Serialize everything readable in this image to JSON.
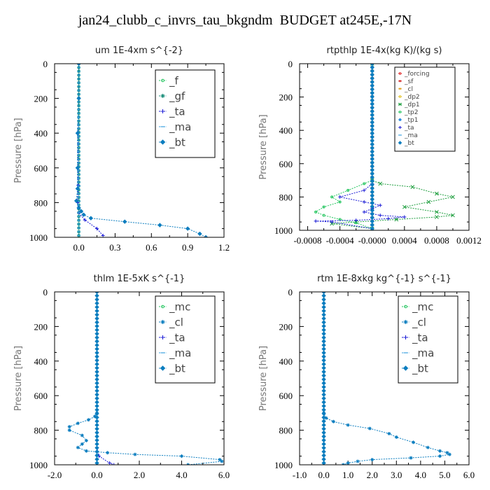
{
  "title": "jan24_clubb_c_invrs_tau_bkgndm  BUDGET at245E,-17N",
  "chart_data": [
    {
      "type": "line",
      "title": "um   1E-4xm s^{-2}",
      "ylabel": "Pressure [hPa]",
      "xlim": [
        -0.2,
        1.2
      ],
      "ylim": [
        1000,
        0
      ],
      "xticks": [
        0.0,
        0.3,
        0.6,
        0.9,
        1.2
      ],
      "xticklabels": [
        "0.0",
        "0.3",
        "0.6",
        "0.9",
        "1.2"
      ],
      "yticks": [
        0,
        200,
        400,
        600,
        800,
        1000
      ],
      "legend_position": "top-right",
      "legend_font": 15,
      "series": [
        {
          "name": "_f",
          "color": "#22c55e",
          "marker": "circle",
          "points": [
            [
              0.0,
              0
            ],
            [
              0.0,
              1000
            ]
          ]
        },
        {
          "name": "_gf",
          "color": "#1b8e7a",
          "marker": "star",
          "points": [
            [
              0.0,
              0
            ],
            [
              0.0,
              1000
            ]
          ]
        },
        {
          "name": "_ta",
          "color": "#1a1ad6",
          "marker": "plus",
          "points": [
            [
              0.0,
              0
            ],
            [
              -0.005,
              700
            ],
            [
              -0.01,
              800
            ],
            [
              0.0,
              860
            ],
            [
              0.05,
              900
            ],
            [
              0.15,
              950
            ],
            [
              0.2,
              990
            ]
          ]
        },
        {
          "name": "_ma",
          "color": "#3aa0e0",
          "marker": "dash",
          "points": [
            [
              0.0,
              0
            ],
            [
              0.0,
              1000
            ]
          ]
        },
        {
          "name": "_bt",
          "color": "#0b7dbf",
          "marker": "diamond",
          "points": [
            [
              0.0,
              0
            ],
            [
              0.0,
              200
            ],
            [
              -0.01,
              400
            ],
            [
              -0.01,
              600
            ],
            [
              -0.01,
              720
            ],
            [
              -0.02,
              790
            ],
            [
              0.0,
              830
            ],
            [
              0.02,
              850
            ],
            [
              0.04,
              870
            ],
            [
              0.1,
              890
            ],
            [
              0.38,
              910
            ],
            [
              0.67,
              930
            ],
            [
              0.9,
              950
            ],
            [
              1.0,
              980
            ],
            [
              1.05,
              1000
            ]
          ]
        }
      ]
    },
    {
      "type": "line",
      "title": "rtpthlp   1E-4x(kg K)/(kg s)",
      "ylabel": "Pressure [hPa]",
      "xlim": [
        -0.0009,
        0.0012
      ],
      "ylim": [
        1000,
        0
      ],
      "xticks": [
        -0.0008,
        -0.0004,
        0.0,
        0.0004,
        0.0008,
        0.0012
      ],
      "xticklabels": [
        "-0.0008",
        "-0.0004",
        "-0.0000",
        "0.0004",
        "0.0008",
        "0.0012"
      ],
      "yticks": [
        0,
        200,
        400,
        600,
        800,
        1000
      ],
      "legend_position": "top-right",
      "legend_font": 9,
      "series": [
        {
          "name": "_forcing",
          "color": "#e02020",
          "marker": "circle",
          "points": [
            [
              0.0,
              0
            ],
            [
              0.0,
              1000
            ]
          ]
        },
        {
          "name": "_sf",
          "color": "#d02020",
          "marker": "tri",
          "points": [
            [
              0.0,
              0
            ],
            [
              0.0,
              1000
            ]
          ]
        },
        {
          "name": "_cl",
          "color": "#e0a020",
          "marker": "tri",
          "points": [
            [
              0.0,
              0
            ],
            [
              0.0,
              1000
            ]
          ]
        },
        {
          "name": "_dp2",
          "color": "#e0c020",
          "marker": "circle",
          "points": [
            [
              0.0,
              0
            ],
            [
              0.0,
              1000
            ]
          ]
        },
        {
          "name": "_dp1",
          "color": "#1e9e3e",
          "marker": "cross",
          "points": [
            [
              0.0,
              0
            ],
            [
              0.0,
              700
            ],
            [
              0.0001,
              720
            ],
            [
              0.0005,
              740
            ],
            [
              0.0008,
              780
            ],
            [
              0.001,
              800
            ],
            [
              0.0007,
              830
            ],
            [
              0.0004,
              860
            ],
            [
              0.0008,
              890
            ],
            [
              0.001,
              910
            ],
            [
              0.0008,
              920
            ],
            [
              0.0003,
              935
            ],
            [
              -0.0002,
              950
            ],
            [
              -0.0005,
              960
            ],
            [
              0.0,
              990
            ],
            [
              0.0,
              1000
            ]
          ]
        },
        {
          "name": "_tp2",
          "color": "#22c55e",
          "marker": "circle",
          "points": [
            [
              0.0,
              0
            ],
            [
              0.0,
              700
            ],
            [
              -0.0001,
              720
            ],
            [
              -0.0003,
              760
            ],
            [
              -0.0005,
              800
            ],
            [
              -0.0004,
              830
            ],
            [
              -0.0006,
              860
            ],
            [
              -0.0007,
              890
            ],
            [
              -0.0006,
              910
            ],
            [
              -0.0004,
              935
            ],
            [
              -0.0002,
              955
            ],
            [
              0.0,
              990
            ],
            [
              0.0,
              1000
            ]
          ]
        },
        {
          "name": "_tp1",
          "color": "#2a8ae0",
          "marker": "star",
          "points": [
            [
              0.0,
              0
            ],
            [
              0.0,
              1000
            ]
          ]
        },
        {
          "name": "_ta",
          "color": "#1a1ad6",
          "marker": "plus",
          "points": [
            [
              0.0,
              0
            ],
            [
              0.0,
              720
            ],
            [
              -0.0001,
              760
            ],
            [
              -0.0004,
              800
            ],
            [
              -0.0001,
              830
            ],
            [
              0.0001,
              850
            ],
            [
              0.0,
              870
            ],
            [
              -0.0001,
              890
            ],
            [
              0.0001,
              910
            ],
            [
              0.0004,
              920
            ],
            [
              0.0002,
              930
            ],
            [
              -0.0002,
              940
            ],
            [
              -0.0007,
              945
            ],
            [
              -0.0005,
              950
            ],
            [
              0.0,
              990
            ],
            [
              0.0,
              1000
            ]
          ]
        },
        {
          "name": "_ma",
          "color": "#3aa0e0",
          "marker": "dash",
          "points": [
            [
              0.0,
              0
            ],
            [
              0.0,
              1000
            ]
          ]
        },
        {
          "name": "_bt",
          "color": "#0b7dbf",
          "marker": "diamond",
          "points": [
            [
              0.0,
              0
            ],
            [
              0.0,
              1000
            ]
          ]
        }
      ]
    },
    {
      "type": "line",
      "title": "thlm   1E-5xK s^{-1}",
      "ylabel": "Pressure [hPa]",
      "xlim": [
        -2.0,
        6.0
      ],
      "ylim": [
        1000,
        0
      ],
      "xticks": [
        -2.0,
        0.0,
        2.0,
        4.0,
        6.0
      ],
      "xticklabels": [
        "-2.0",
        "0.0",
        "2.0",
        "4.0",
        "6.0"
      ],
      "yticks": [
        0,
        200,
        400,
        600,
        800,
        1000
      ],
      "legend_position": "top-right",
      "legend_font": 15,
      "series": [
        {
          "name": "_mc",
          "color": "#22c55e",
          "marker": "circle",
          "points": [
            [
              0.0,
              0
            ],
            [
              0.0,
              1000
            ]
          ]
        },
        {
          "name": "_cl",
          "color": "#0b7dbf",
          "marker": "star",
          "points": [
            [
              0.0,
              0
            ],
            [
              0.0,
              700
            ],
            [
              -0.1,
              720
            ],
            [
              -0.4,
              740
            ],
            [
              -0.9,
              760
            ],
            [
              -1.3,
              780
            ],
            [
              -1.3,
              800
            ],
            [
              -0.7,
              830
            ],
            [
              -0.5,
              860
            ],
            [
              -0.7,
              880
            ],
            [
              -0.9,
              900
            ],
            [
              -0.5,
              920
            ],
            [
              0.5,
              930
            ],
            [
              1.8,
              940
            ],
            [
              4.0,
              950
            ],
            [
              5.8,
              970
            ],
            [
              5.9,
              980
            ],
            [
              4.3,
              1000
            ]
          ]
        },
        {
          "name": "_ta",
          "color": "#1a1ad6",
          "marker": "plus",
          "points": [
            [
              0.0,
              0
            ],
            [
              0.0,
              900
            ],
            [
              0.1,
              950
            ],
            [
              0.6,
              990
            ],
            [
              0.8,
              1000
            ]
          ]
        },
        {
          "name": "_ma",
          "color": "#3aa0e0",
          "marker": "dash",
          "points": [
            [
              0.0,
              0
            ],
            [
              0.0,
              1000
            ]
          ]
        },
        {
          "name": "_bt",
          "color": "#0b7dbf",
          "marker": "diamond",
          "points": [
            [
              0.0,
              0
            ],
            [
              0.0,
              1000
            ]
          ]
        }
      ]
    },
    {
      "type": "line",
      "title": "rtm   1E-8xkg kg^{-1} s^{-1}",
      "ylabel": "Pressure [hPa]",
      "xlim": [
        -1.0,
        6.0
      ],
      "ylim": [
        1000,
        0
      ],
      "xticks": [
        -1.0,
        0.0,
        1.0,
        2.0,
        3.0,
        4.0,
        5.0,
        6.0
      ],
      "xticklabels": [
        "-1.0",
        "0.0",
        "1.0",
        "2.0",
        "3.0",
        "4.0",
        "5.0",
        "6.0"
      ],
      "yticks": [
        0,
        200,
        400,
        600,
        800,
        1000
      ],
      "legend_position": "top-right",
      "legend_font": 15,
      "series": [
        {
          "name": "_mc",
          "color": "#22c55e",
          "marker": "circle",
          "points": [
            [
              0.0,
              0
            ],
            [
              0.0,
              1000
            ]
          ]
        },
        {
          "name": "_cl",
          "color": "#0b7dbf",
          "marker": "star",
          "points": [
            [
              0.0,
              0
            ],
            [
              0.0,
              700
            ],
            [
              0.1,
              730
            ],
            [
              0.4,
              750
            ],
            [
              1.0,
              770
            ],
            [
              1.9,
              790
            ],
            [
              2.7,
              820
            ],
            [
              3.0,
              840
            ],
            [
              3.7,
              870
            ],
            [
              4.3,
              900
            ],
            [
              4.8,
              920
            ],
            [
              5.1,
              930
            ],
            [
              5.2,
              940
            ],
            [
              4.8,
              950
            ],
            [
              3.6,
              960
            ],
            [
              2.0,
              970
            ],
            [
              1.4,
              980
            ],
            [
              1.0,
              990
            ],
            [
              0.8,
              1000
            ]
          ]
        },
        {
          "name": "_ta",
          "color": "#1a1ad6",
          "marker": "plus",
          "points": [
            [
              0.0,
              0
            ],
            [
              0.0,
              1000
            ]
          ]
        },
        {
          "name": "_ma",
          "color": "#3aa0e0",
          "marker": "dash",
          "points": [
            [
              0.0,
              0
            ],
            [
              0.0,
              1000
            ]
          ]
        },
        {
          "name": "_bt",
          "color": "#0b7dbf",
          "marker": "diamond",
          "points": [
            [
              0.0,
              0
            ],
            [
              0.0,
              1000
            ]
          ]
        }
      ]
    }
  ]
}
